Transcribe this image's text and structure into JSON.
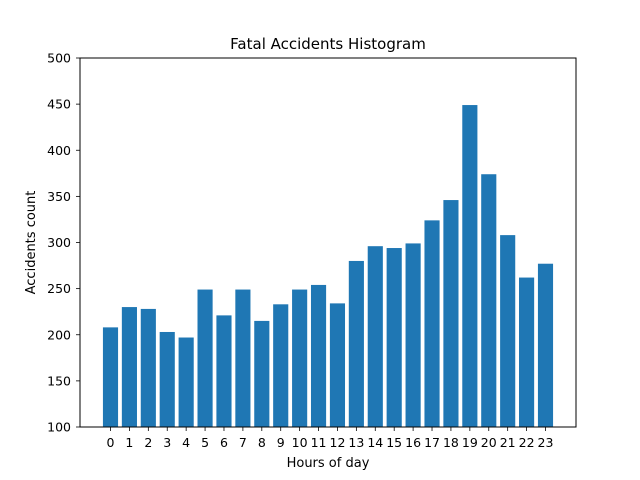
{
  "chart_data": {
    "type": "bar",
    "title": "Fatal Accidents Histogram",
    "xlabel": "Hours of day",
    "ylabel": "Accidents count",
    "categories": [
      "0",
      "1",
      "2",
      "3",
      "4",
      "5",
      "6",
      "7",
      "8",
      "9",
      "10",
      "11",
      "12",
      "13",
      "14",
      "15",
      "16",
      "17",
      "18",
      "19",
      "20",
      "21",
      "22",
      "23"
    ],
    "values": [
      208,
      230,
      228,
      203,
      197,
      249,
      221,
      249,
      215,
      233,
      249,
      254,
      234,
      280,
      296,
      294,
      299,
      324,
      346,
      449,
      374,
      308,
      262,
      277
    ],
    "ylim": [
      100,
      500
    ],
    "yticks": [
      100,
      150,
      200,
      250,
      300,
      350,
      400,
      450,
      500
    ],
    "bar_color": "#1f77b4",
    "grid": false,
    "legend": "none"
  }
}
